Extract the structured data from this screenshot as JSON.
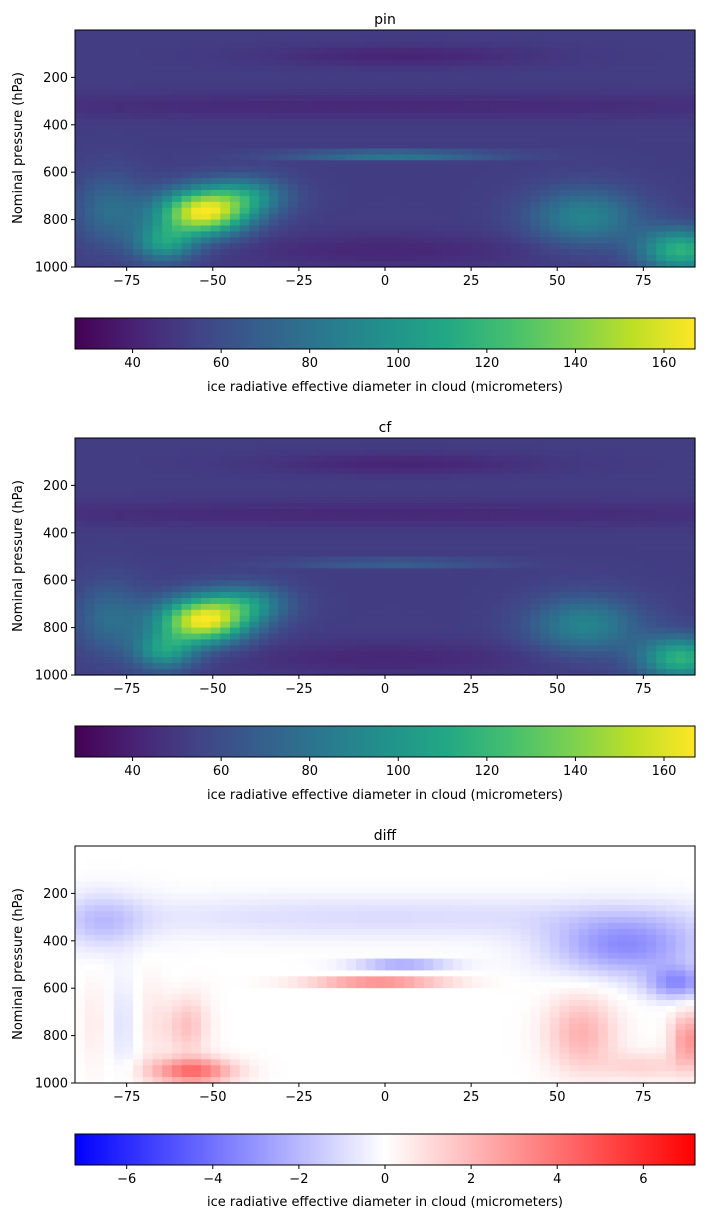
{
  "chart_data": [
    {
      "type": "heatmap",
      "title": "pin",
      "ylabel": "Nominal pressure (hPa)",
      "xlabel": "",
      "xlim": [
        -90,
        90
      ],
      "ylim": [
        1000,
        0
      ],
      "x_ticks": [
        "−75",
        "−50",
        "−25",
        "0",
        "25",
        "50",
        "75"
      ],
      "x_tick_values": [
        -75,
        -50,
        -25,
        0,
        25,
        50,
        75
      ],
      "y_ticks": [
        "200",
        "400",
        "600",
        "800",
        "1000"
      ],
      "y_tick_values": [
        200,
        400,
        600,
        800,
        1000
      ],
      "colormap": "viridis",
      "color_range": [
        27,
        167
      ],
      "colorbar": {
        "label": "ice radiative effective diameter in cloud (micrometers)",
        "ticks": [
          "40",
          "60",
          "80",
          "100",
          "120",
          "140",
          "160"
        ],
        "tick_values": [
          40,
          60,
          80,
          100,
          120,
          140,
          160
        ]
      }
    },
    {
      "type": "heatmap",
      "title": "cf",
      "ylabel": "Nominal pressure (hPa)",
      "xlabel": "",
      "xlim": [
        -90,
        90
      ],
      "ylim": [
        1000,
        0
      ],
      "x_ticks": [
        "−75",
        "−50",
        "−25",
        "0",
        "25",
        "50",
        "75"
      ],
      "x_tick_values": [
        -75,
        -50,
        -25,
        0,
        25,
        50,
        75
      ],
      "y_ticks": [
        "200",
        "400",
        "600",
        "800",
        "1000"
      ],
      "y_tick_values": [
        200,
        400,
        600,
        800,
        1000
      ],
      "colormap": "viridis",
      "color_range": [
        27,
        167
      ],
      "colorbar": {
        "label": "ice radiative effective diameter in cloud (micrometers)",
        "ticks": [
          "40",
          "60",
          "80",
          "100",
          "120",
          "140",
          "160"
        ],
        "tick_values": [
          40,
          60,
          80,
          100,
          120,
          140,
          160
        ]
      }
    },
    {
      "type": "heatmap",
      "title": "diff",
      "ylabel": "Nominal pressure (hPa)",
      "xlabel": "",
      "xlim": [
        -90,
        90
      ],
      "ylim": [
        1000,
        0
      ],
      "x_ticks": [
        "−75",
        "−50",
        "−25",
        "0",
        "25",
        "50",
        "75"
      ],
      "x_tick_values": [
        -75,
        -50,
        -25,
        0,
        25,
        50,
        75
      ],
      "y_ticks": [
        "200",
        "400",
        "600",
        "800",
        "1000"
      ],
      "y_tick_values": [
        200,
        400,
        600,
        800,
        1000
      ],
      "colormap": "bwr",
      "color_range": [
        -7.2,
        7.2
      ],
      "colorbar": {
        "label": "ice radiative effective diameter in cloud (micrometers)",
        "ticks": [
          "−6",
          "−4",
          "−2",
          "0",
          "2",
          "4",
          "6"
        ],
        "tick_values": [
          -6,
          -4,
          -2,
          0,
          2,
          4,
          6
        ]
      }
    }
  ]
}
